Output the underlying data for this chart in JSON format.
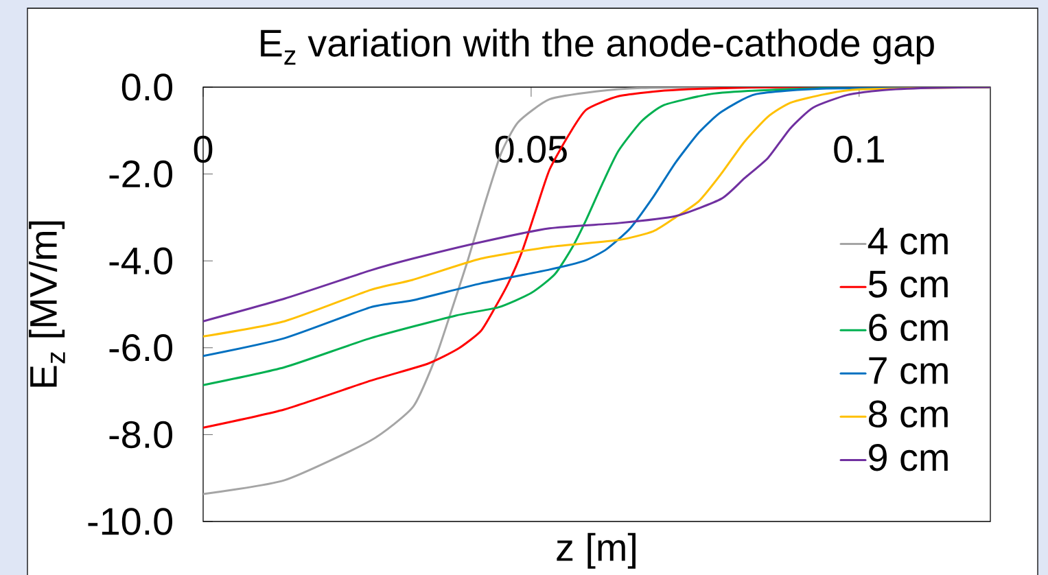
{
  "chart_data": {
    "type": "line",
    "title": "E$_{z}$ variation with the anode-cathode gap",
    "xlabel": "z [m]",
    "ylabel": "E$_{z}$ [MV/m]",
    "xlim": [
      0,
      0.12
    ],
    "ylim": [
      -10,
      0
    ],
    "xticks": [
      0,
      0.05,
      0.1
    ],
    "yticks": [
      {
        "value": -10,
        "label": "-10.0"
      },
      {
        "value": -8,
        "label": "-8.0"
      },
      {
        "value": -6,
        "label": "-6.0"
      },
      {
        "value": -4,
        "label": "-4.0"
      },
      {
        "value": -2,
        "label": "-2.0"
      },
      {
        "value": 0,
        "label": "0.0"
      }
    ],
    "legend": "right",
    "marker": "none",
    "series": [
      {
        "name": "4 cm",
        "color": "#a5a5a5",
        "x": [
          0,
          0.0124,
          0.0255,
          0.032,
          0.0354,
          0.0376,
          0.0403,
          0.0429,
          0.0454,
          0.048,
          0.0528,
          0.0599,
          0.0668,
          0.08,
          0.1,
          0.12
        ],
        "values": [
          -9.37,
          -9.05,
          -8.14,
          -7.36,
          -6.24,
          -5.26,
          -4.01,
          -2.7,
          -1.53,
          -0.81,
          -0.28,
          -0.1,
          -0.02,
          0,
          0,
          0
        ]
      },
      {
        "name": "5 cm",
        "color": "#ff0000",
        "x": [
          0,
          0.0124,
          0.0255,
          0.0342,
          0.0389,
          0.0423,
          0.0444,
          0.0465,
          0.0486,
          0.0507,
          0.0528,
          0.0557,
          0.0584,
          0.0633,
          0.0703,
          0.0773,
          0.09,
          0.12
        ],
        "values": [
          -7.84,
          -7.42,
          -6.76,
          -6.37,
          -6.02,
          -5.62,
          -5.1,
          -4.52,
          -3.79,
          -2.84,
          -1.9,
          -1.11,
          -0.52,
          -0.21,
          -0.08,
          -0.03,
          0,
          0
        ]
      },
      {
        "name": "6 cm",
        "color": "#00b050",
        "x": [
          0,
          0.0124,
          0.0255,
          0.0385,
          0.045,
          0.05,
          0.0536,
          0.0563,
          0.0584,
          0.0609,
          0.0633,
          0.0668,
          0.0703,
          0.0773,
          0.0843,
          0.1,
          0.12
        ],
        "values": [
          -6.86,
          -6.45,
          -5.78,
          -5.26,
          -5.07,
          -4.74,
          -4.31,
          -3.68,
          -3.05,
          -2.21,
          -1.47,
          -0.79,
          -0.41,
          -0.16,
          -0.08,
          0,
          0
        ]
      },
      {
        "name": "7 cm",
        "color": "#0070c0",
        "x": [
          0,
          0.0124,
          0.0255,
          0.0319,
          0.0423,
          0.0528,
          0.0581,
          0.0615,
          0.0651,
          0.0686,
          0.072,
          0.0756,
          0.079,
          0.0843,
          0.095,
          0.12
        ],
        "values": [
          -6.19,
          -5.78,
          -5.07,
          -4.91,
          -4.52,
          -4.2,
          -4.0,
          -3.73,
          -3.25,
          -2.53,
          -1.74,
          -1.04,
          -0.57,
          -0.16,
          -0.03,
          0
        ]
      },
      {
        "name": "8 cm",
        "color": "#ffc000",
        "x": [
          0,
          0.0124,
          0.0255,
          0.0319,
          0.0423,
          0.0528,
          0.0633,
          0.0686,
          0.072,
          0.0756,
          0.079,
          0.0825,
          0.0861,
          0.0895,
          0.0948,
          0.1,
          0.12
        ],
        "values": [
          -5.74,
          -5.39,
          -4.67,
          -4.44,
          -3.95,
          -3.68,
          -3.52,
          -3.32,
          -3.0,
          -2.62,
          -1.99,
          -1.26,
          -0.68,
          -0.36,
          -0.16,
          -0.05,
          0
        ]
      },
      {
        "name": "9 cm",
        "color": "#7030a0",
        "x": [
          0,
          0.0124,
          0.0255,
          0.0319,
          0.0423,
          0.0528,
          0.0633,
          0.072,
          0.079,
          0.0825,
          0.0861,
          0.0895,
          0.093,
          0.0982,
          0.1035,
          0.1105,
          0.12
        ],
        "values": [
          -5.39,
          -4.87,
          -4.22,
          -3.95,
          -3.57,
          -3.25,
          -3.13,
          -2.97,
          -2.57,
          -2.1,
          -1.63,
          -0.95,
          -0.47,
          -0.18,
          -0.07,
          -0.02,
          0
        ]
      }
    ]
  }
}
